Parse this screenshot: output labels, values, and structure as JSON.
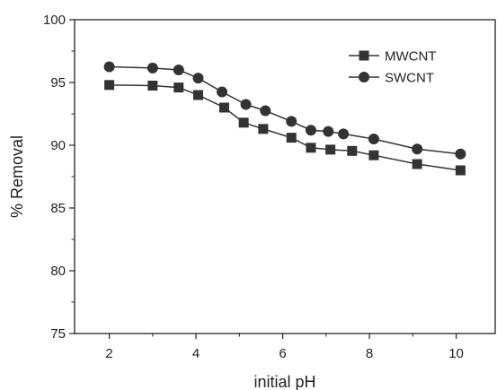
{
  "chart_data": {
    "type": "line",
    "title": "",
    "xlabel": "initial pH",
    "ylabel": "% Removal",
    "xlim": [
      1.2,
      10.9
    ],
    "ylim": [
      75,
      100
    ],
    "xticks": [
      2,
      4,
      6,
      8,
      10
    ],
    "xtick_labels": [
      "2",
      "4",
      "6",
      "8",
      "10"
    ],
    "yticks": [
      75,
      80,
      85,
      90,
      95,
      100
    ],
    "ytick_labels": [
      "75",
      "80",
      "85",
      "90",
      "95",
      "100"
    ],
    "grid": false,
    "legend_position": "top-right",
    "series": [
      {
        "name": "MWCNT",
        "marker": "square",
        "color": "#333333",
        "x": [
          2.0,
          3.0,
          3.6,
          4.05,
          4.65,
          5.1,
          5.55,
          6.2,
          6.65,
          7.1,
          7.6,
          8.1,
          9.1,
          10.1
        ],
        "y": [
          94.8,
          94.75,
          94.6,
          94.0,
          93.0,
          91.8,
          91.3,
          90.6,
          89.8,
          89.65,
          89.55,
          89.2,
          88.5,
          88.0
        ]
      },
      {
        "name": "SWCNT",
        "marker": "circle",
        "color": "#333333",
        "x": [
          2.0,
          3.0,
          3.6,
          4.05,
          4.6,
          5.15,
          5.6,
          6.2,
          6.65,
          7.05,
          7.4,
          8.1,
          9.1,
          10.1
        ],
        "y": [
          96.25,
          96.15,
          96.0,
          95.35,
          94.25,
          93.25,
          92.75,
          91.9,
          91.2,
          91.1,
          90.9,
          90.5,
          89.7,
          89.3
        ]
      }
    ]
  }
}
